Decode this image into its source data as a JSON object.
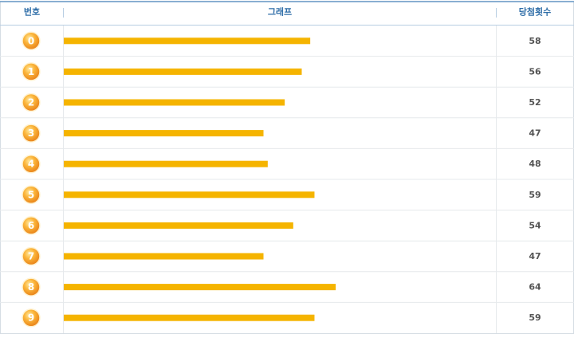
{
  "chart_data": {
    "type": "bar",
    "columns": [
      "번호",
      "그래프",
      "당첨횟수"
    ],
    "categories": [
      "0",
      "1",
      "2",
      "3",
      "4",
      "5",
      "6",
      "7",
      "8",
      "9"
    ],
    "values": [
      58,
      56,
      52,
      47,
      48,
      59,
      54,
      47,
      64,
      59
    ],
    "color": "#f5b400"
  }
}
